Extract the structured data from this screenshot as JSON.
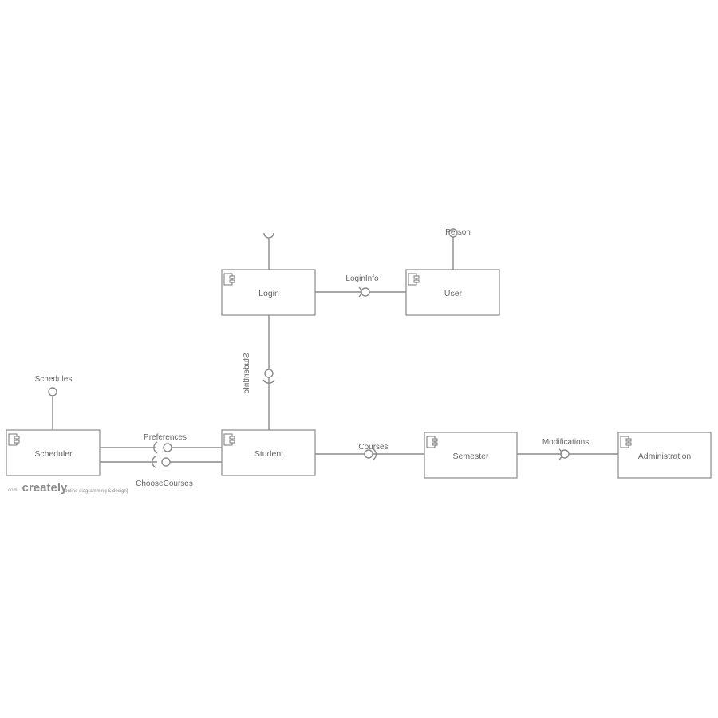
{
  "components": {
    "login": "Login",
    "user": "User",
    "scheduler": "Scheduler",
    "student": "Student",
    "semester": "Semester",
    "administration": "Administration"
  },
  "interfaces": {
    "person": "Person",
    "login_info": "LoginInfo",
    "student_info": "StudentInfo",
    "schedules": "Schedules",
    "preferences": "Preferences",
    "choose_courses": "ChooseCourses",
    "courses": "Courses",
    "modifications": "Modifications"
  },
  "watermark": {
    "brand": "creately",
    "domain": ".com",
    "tagline": "[online diagramming & design]"
  },
  "colors": {
    "stroke": "#8a8a8a",
    "text": "#666666"
  }
}
